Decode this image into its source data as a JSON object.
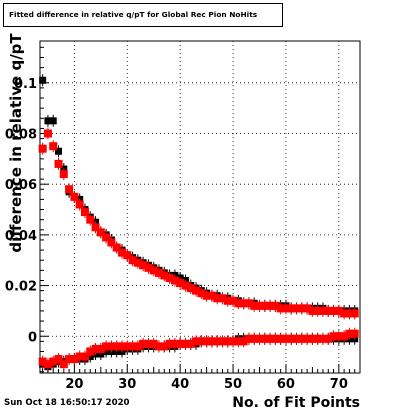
{
  "title": "Fitted difference in relative q/pT for Global Rec Pion NoHits",
  "timestamp": "Sun Oct 18 16:50:17 2020",
  "chart_data": {
    "type": "scatter",
    "title": "Fitted difference in relative q/pT for Global Rec Pion NoHits",
    "xlabel": "No. of Fit Points",
    "ylabel": "difference in relative q/pT",
    "xlim": [
      13.5,
      74
    ],
    "ylim": [
      -0.0145,
      0.1165
    ],
    "grid": true,
    "x_ticks": [
      20,
      30,
      40,
      50,
      60,
      70
    ],
    "y_ticks": [
      0,
      0.02,
      0.04,
      0.06,
      0.08,
      0.1
    ],
    "y_tick_labels": [
      "0",
      "0.02",
      "0.04",
      "0.06",
      "0.08",
      "0.1"
    ],
    "series": [
      {
        "color": "#000000",
        "points": [
          [
            14,
            0.101
          ],
          [
            15,
            0.085
          ],
          [
            16,
            0.085
          ],
          [
            17,
            0.073
          ],
          [
            18,
            0.066
          ],
          [
            19,
            0.057
          ],
          [
            20,
            0.055
          ],
          [
            21,
            0.054
          ],
          [
            22,
            0.05
          ],
          [
            23,
            0.047
          ],
          [
            24,
            0.045
          ],
          [
            25,
            0.041
          ],
          [
            26,
            0.04
          ],
          [
            27,
            0.038
          ],
          [
            28,
            0.035
          ],
          [
            29,
            0.034
          ],
          [
            30,
            0.032
          ],
          [
            31,
            0.031
          ],
          [
            32,
            0.03
          ],
          [
            33,
            0.029
          ],
          [
            34,
            0.028
          ],
          [
            35,
            0.027
          ],
          [
            36,
            0.026
          ],
          [
            37,
            0.025
          ],
          [
            38,
            0.024
          ],
          [
            39,
            0.024
          ],
          [
            40,
            0.023
          ],
          [
            41,
            0.022
          ],
          [
            42,
            0.02
          ],
          [
            43,
            0.019
          ],
          [
            44,
            0.018
          ],
          [
            45,
            0.017
          ],
          [
            46,
            0.016
          ],
          [
            47,
            0.016
          ],
          [
            48,
            0.015
          ],
          [
            49,
            0.015
          ],
          [
            50,
            0.014
          ],
          [
            51,
            0.014
          ],
          [
            52,
            0.013
          ],
          [
            53,
            0.013
          ],
          [
            54,
            0.013
          ],
          [
            55,
            0.012
          ],
          [
            56,
            0.012
          ],
          [
            57,
            0.012
          ],
          [
            58,
            0.012
          ],
          [
            59,
            0.012
          ],
          [
            60,
            0.012
          ],
          [
            61,
            0.011
          ],
          [
            62,
            0.011
          ],
          [
            63,
            0.011
          ],
          [
            64,
            0.011
          ],
          [
            65,
            0.011
          ],
          [
            66,
            0.011
          ],
          [
            67,
            0.011
          ],
          [
            68,
            0.01
          ],
          [
            69,
            0.01
          ],
          [
            70,
            0.01
          ],
          [
            71,
            0.01
          ],
          [
            72,
            0.01
          ],
          [
            73,
            0.01
          ],
          [
            14,
            -0.011
          ],
          [
            15,
            -0.012
          ],
          [
            16,
            -0.011
          ],
          [
            17,
            -0.01
          ],
          [
            18,
            -0.01
          ],
          [
            19,
            -0.009
          ],
          [
            20,
            -0.009
          ],
          [
            21,
            -0.009
          ],
          [
            22,
            -0.009
          ],
          [
            23,
            -0.008
          ],
          [
            24,
            -0.007
          ],
          [
            25,
            -0.007
          ],
          [
            26,
            -0.006
          ],
          [
            27,
            -0.006
          ],
          [
            28,
            -0.006
          ],
          [
            29,
            -0.006
          ],
          [
            30,
            -0.005
          ],
          [
            31,
            -0.005
          ],
          [
            32,
            -0.005
          ],
          [
            33,
            -0.004
          ],
          [
            34,
            -0.004
          ],
          [
            35,
            -0.004
          ],
          [
            36,
            -0.004
          ],
          [
            37,
            -0.004
          ],
          [
            38,
            -0.004
          ],
          [
            39,
            -0.004
          ],
          [
            40,
            -0.003
          ],
          [
            41,
            -0.003
          ],
          [
            42,
            -0.003
          ],
          [
            43,
            -0.003
          ],
          [
            44,
            -0.002
          ],
          [
            45,
            -0.002
          ],
          [
            46,
            -0.002
          ],
          [
            47,
            -0.002
          ],
          [
            48,
            -0.002
          ],
          [
            49,
            -0.002
          ],
          [
            50,
            -0.002
          ],
          [
            51,
            -0.001
          ],
          [
            52,
            -0.001
          ],
          [
            53,
            -0.001
          ],
          [
            54,
            -0.001
          ],
          [
            55,
            -0.001
          ],
          [
            56,
            -0.001
          ],
          [
            57,
            -0.001
          ],
          [
            58,
            -0.001
          ],
          [
            59,
            -0.001
          ],
          [
            60,
            -0.001
          ],
          [
            61,
            -0.001
          ],
          [
            62,
            -0.001
          ],
          [
            63,
            -0.001
          ],
          [
            64,
            -0.001
          ],
          [
            65,
            -0.001
          ],
          [
            66,
            -0.001
          ],
          [
            67,
            -0.001
          ],
          [
            68,
            -0.001
          ],
          [
            69,
            -0.001
          ],
          [
            70,
            -0.001
          ],
          [
            71,
            -0.001
          ],
          [
            72,
            -0.001
          ],
          [
            73,
            -0.001
          ]
        ]
      },
      {
        "color": "#ff0000",
        "points": [
          [
            14,
            0.074
          ],
          [
            15,
            0.08
          ],
          [
            16,
            0.075
          ],
          [
            17,
            0.068
          ],
          [
            18,
            0.064
          ],
          [
            19,
            0.058
          ],
          [
            20,
            0.055
          ],
          [
            21,
            0.052
          ],
          [
            22,
            0.049
          ],
          [
            23,
            0.046
          ],
          [
            24,
            0.043
          ],
          [
            25,
            0.041
          ],
          [
            26,
            0.039
          ],
          [
            27,
            0.037
          ],
          [
            28,
            0.035
          ],
          [
            29,
            0.033
          ],
          [
            30,
            0.032
          ],
          [
            31,
            0.03
          ],
          [
            32,
            0.029
          ],
          [
            33,
            0.028
          ],
          [
            34,
            0.027
          ],
          [
            35,
            0.026
          ],
          [
            36,
            0.025
          ],
          [
            37,
            0.024
          ],
          [
            38,
            0.023
          ],
          [
            39,
            0.022
          ],
          [
            40,
            0.021
          ],
          [
            41,
            0.02
          ],
          [
            42,
            0.019
          ],
          [
            43,
            0.018
          ],
          [
            44,
            0.017
          ],
          [
            45,
            0.016
          ],
          [
            46,
            0.016
          ],
          [
            47,
            0.015
          ],
          [
            48,
            0.015
          ],
          [
            49,
            0.014
          ],
          [
            50,
            0.014
          ],
          [
            51,
            0.013
          ],
          [
            52,
            0.013
          ],
          [
            53,
            0.013
          ],
          [
            54,
            0.012
          ],
          [
            55,
            0.012
          ],
          [
            56,
            0.012
          ],
          [
            57,
            0.012
          ],
          [
            58,
            0.012
          ],
          [
            59,
            0.011
          ],
          [
            60,
            0.011
          ],
          [
            61,
            0.011
          ],
          [
            62,
            0.011
          ],
          [
            63,
            0.011
          ],
          [
            64,
            0.011
          ],
          [
            65,
            0.01
          ],
          [
            66,
            0.01
          ],
          [
            67,
            0.01
          ],
          [
            68,
            0.01
          ],
          [
            69,
            0.01
          ],
          [
            70,
            0.01
          ],
          [
            71,
            0.009
          ],
          [
            72,
            0.009
          ],
          [
            73,
            0.009
          ],
          [
            14,
            -0.01
          ],
          [
            15,
            -0.011
          ],
          [
            16,
            -0.01
          ],
          [
            17,
            -0.009
          ],
          [
            18,
            -0.011
          ],
          [
            19,
            -0.009
          ],
          [
            20,
            -0.009
          ],
          [
            21,
            -0.008
          ],
          [
            22,
            -0.008
          ],
          [
            23,
            -0.006
          ],
          [
            24,
            -0.005
          ],
          [
            25,
            -0.005
          ],
          [
            26,
            -0.004
          ],
          [
            27,
            -0.004
          ],
          [
            28,
            -0.004
          ],
          [
            29,
            -0.004
          ],
          [
            30,
            -0.004
          ],
          [
            31,
            -0.004
          ],
          [
            32,
            -0.004
          ],
          [
            33,
            -0.003
          ],
          [
            34,
            -0.003
          ],
          [
            35,
            -0.003
          ],
          [
            36,
            -0.004
          ],
          [
            37,
            -0.004
          ],
          [
            38,
            -0.003
          ],
          [
            39,
            -0.003
          ],
          [
            40,
            -0.003
          ],
          [
            41,
            -0.003
          ],
          [
            42,
            -0.003
          ],
          [
            43,
            -0.002
          ],
          [
            44,
            -0.002
          ],
          [
            45,
            -0.002
          ],
          [
            46,
            -0.002
          ],
          [
            47,
            -0.002
          ],
          [
            48,
            -0.002
          ],
          [
            49,
            -0.002
          ],
          [
            50,
            -0.002
          ],
          [
            51,
            -0.002
          ],
          [
            52,
            -0.002
          ],
          [
            53,
            -0.001
          ],
          [
            54,
            -0.001
          ],
          [
            55,
            -0.001
          ],
          [
            56,
            -0.001
          ],
          [
            57,
            -0.001
          ],
          [
            58,
            -0.001
          ],
          [
            59,
            -0.001
          ],
          [
            60,
            -0.001
          ],
          [
            61,
            -0.001
          ],
          [
            62,
            -0.001
          ],
          [
            63,
            -0.001
          ],
          [
            64,
            -0.001
          ],
          [
            65,
            -0.001
          ],
          [
            66,
            -0.001
          ],
          [
            67,
            -0.001
          ],
          [
            68,
            -0.001
          ],
          [
            69,
            0.0
          ],
          [
            70,
            0.0
          ],
          [
            71,
            0.0
          ],
          [
            72,
            0.001
          ],
          [
            73,
            0.001
          ]
        ]
      }
    ]
  }
}
